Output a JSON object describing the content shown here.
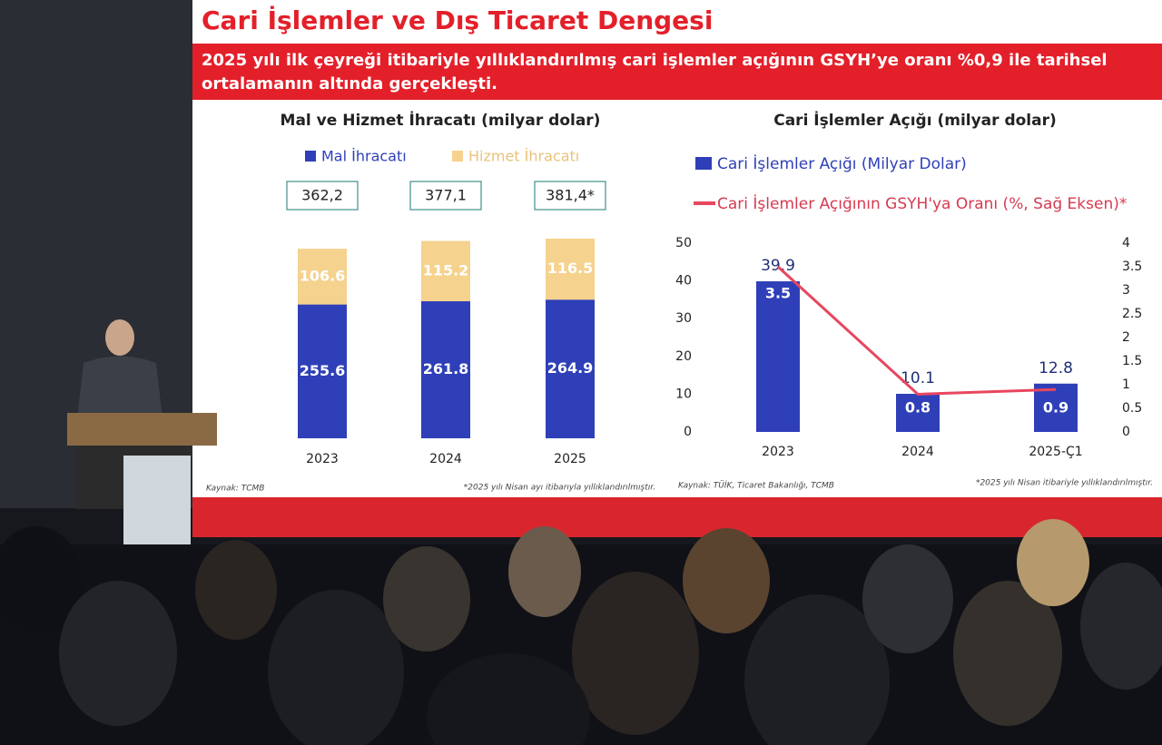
{
  "slide": {
    "title": "Cari İşlemler ve Dış Ticaret Dengesi",
    "subtitle": "2025 yılı ilk çeyreği itibariyle yıllıklandırılmış cari işlemler açığının GSYH’ye oranı %0,9 ile tarihsel ortalamanın altında gerçekleşti."
  },
  "chart_data": [
    {
      "type": "stacked-bar",
      "title": "Mal ve Hizmet İhracatı (milyar dolar)",
      "categories": [
        "2023",
        "2024",
        "2025"
      ],
      "series": [
        {
          "name": "Mal İhracatı",
          "color": "#2f3fb8",
          "values": [
            255.6,
            261.8,
            264.9
          ]
        },
        {
          "name": "Hizmet İhracatı",
          "color": "#f5d28e",
          "values": [
            106.6,
            115.2,
            116.5
          ]
        }
      ],
      "totals": [
        362.2,
        377.1,
        381.4
      ],
      "total_labels": [
        "362,2",
        "377,1",
        "381,4*"
      ],
      "source": "Kaynak: TCMB",
      "note": "*2025 yılı Nisan ayı itibarıyla yıllıklandırılmıştır."
    },
    {
      "type": "bar-line",
      "title": "Cari İşlemler Açığı (milyar dolar)",
      "categories": [
        "2023",
        "2024",
        "2025-Ç1"
      ],
      "series": [
        {
          "name": "Cari İşlemler Açığı (Milyar Dolar)",
          "color": "#2f3fb8",
          "values": [
            39.9,
            10.1,
            12.8
          ]
        },
        {
          "name": "Cari İşlemler Açığının GSYH'ya Oranı (%, Sağ Eksen)*",
          "color": "#e8475f",
          "values": [
            3.5,
            0.8,
            0.9
          ],
          "axis": "y2"
        }
      ],
      "ylim": [
        0,
        50
      ],
      "yticks": [
        0,
        10,
        20,
        30,
        40,
        50
      ],
      "y2lim": [
        0,
        4
      ],
      "y2ticks": [
        0,
        0.5,
        1,
        1.5,
        2,
        2.5,
        3,
        3.5,
        4
      ],
      "source": "Kaynak: TÜİK, Ticaret Bakanlığı, TCMB",
      "note": "*2025 yılı Nisan itibariyle yıllıklandırılmıştır."
    }
  ]
}
